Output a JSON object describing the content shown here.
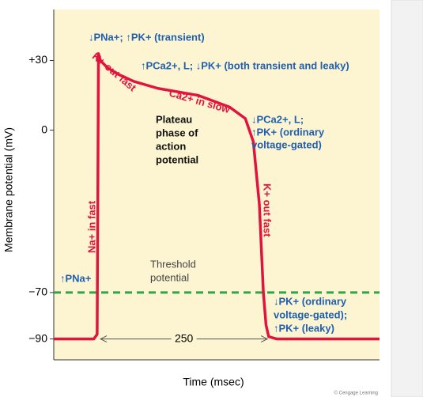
{
  "chart_data": {
    "type": "line",
    "xlabel": "Time (msec)",
    "ylabel": "Membrane potential (mV)",
    "x": [
      -70,
      -10,
      -5,
      -3,
      0,
      10,
      27,
      50,
      86,
      146,
      193,
      217,
      229,
      238,
      244,
      248,
      252,
      264,
      418
    ],
    "series": [
      {
        "name": "Membrane potential",
        "color": "#e0143c",
        "values": [
          -90,
          -90,
          -88,
          33,
          30,
          27,
          24,
          21,
          18,
          15,
          10,
          5,
          -5,
          -32,
          -70,
          -84,
          -89,
          -90,
          -90
        ]
      }
    ],
    "xlim": [
      -70,
      418
    ],
    "ylim": [
      -99,
      52
    ],
    "yticks": [
      {
        "value": 30,
        "label": "+30"
      },
      0,
      {
        "value": -70,
        "label": "−70"
      },
      {
        "value": -90,
        "label": "−90"
      }
    ],
    "threshold": {
      "value": -70,
      "color": "#2aa84a",
      "label": [
        "Threshold",
        "potential"
      ]
    },
    "interval": [
      0,
      250
    ],
    "annotations": [
      [
        "↓PNa+; ↑PK+ (transient)"
      ],
      [
        "↑PCa2+, L; ↓PK+ (both transient and leaky)"
      ],
      [
        "K+ out fast"
      ],
      [
        "Ca2+ in slow"
      ],
      [
        "Plateau",
        "phase of",
        "action",
        "potential"
      ],
      [
        "↓PCa2+, L;",
        "↑PK+ (ordinary",
        "voltage-gated)"
      ],
      [
        "Na+ in fast"
      ],
      [
        "K+ out fast"
      ],
      [
        "↑PNa+"
      ],
      [
        "↓PK+ (ordinary",
        "voltage-gated);",
        "↑PK+ (leaky)"
      ]
    ],
    "credit": "© Cengage Learning"
  }
}
